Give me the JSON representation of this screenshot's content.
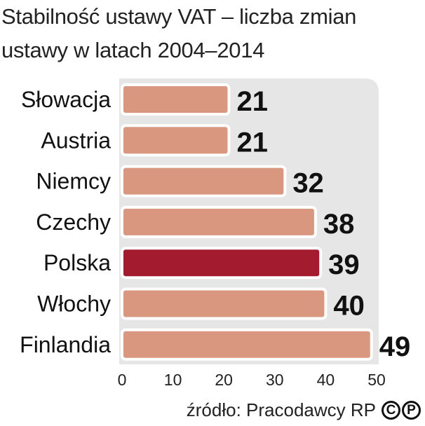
{
  "title": {
    "line1": "Stabilność ustawy VAT – liczba zmian",
    "line2": "ustawy w latach 2004–2014"
  },
  "colors": {
    "bar": "#d9977f",
    "highlight": "#a31b2f",
    "panel": "#e6e6e6"
  },
  "chart_data": {
    "type": "bar",
    "orientation": "horizontal",
    "categories": [
      "Słowacja",
      "Austria",
      "Niemcy",
      "Czechy",
      "Polska",
      "Włochy",
      "Finlandia"
    ],
    "values": [
      21,
      21,
      32,
      38,
      39,
      40,
      49
    ],
    "highlight": "Polska",
    "xlim": [
      0,
      50
    ],
    "xticks": [
      "0",
      "10",
      "20",
      "30",
      "40",
      "50"
    ],
    "title": "Stabilność ustawy VAT – liczba zmian ustawy w latach 2004–2014",
    "xlabel": "",
    "ylabel": "",
    "grid": false,
    "data_labels": true
  },
  "source": {
    "text": "źródło: Pracodawcy RP",
    "logo_letters": [
      "C",
      "P"
    ]
  }
}
